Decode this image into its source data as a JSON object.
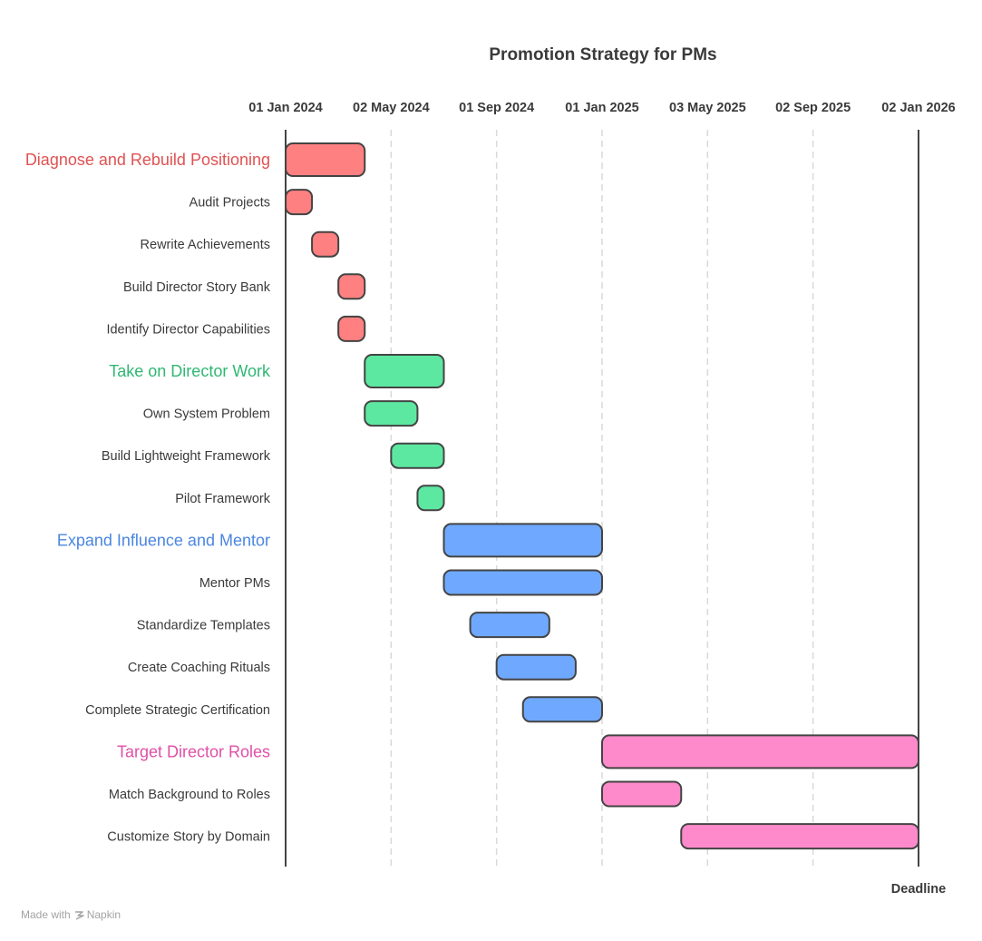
{
  "chart_data": {
    "type": "gantt",
    "title": "Promotion Strategy for PMs",
    "axis_ticks": [
      "01 Jan 2024",
      "02 May 2024",
      "01 Sep 2024",
      "01 Jan 2025",
      "03 May 2025",
      "02 Sep 2025",
      "02 Jan 2026"
    ],
    "tick_values": [
      0,
      4,
      8,
      12,
      16,
      20,
      24
    ],
    "x_unit": "months since 01 Jan 2024",
    "xlim": [
      0,
      24
    ],
    "deadline": {
      "label": "Deadline",
      "value": 24
    },
    "rows": [
      {
        "kind": "group",
        "label": "Diagnose and Rebuild Positioning",
        "start": 0,
        "end": 3,
        "color": "#e05252",
        "fill": "#ff8080"
      },
      {
        "kind": "task",
        "label": "Audit Projects",
        "start": 0,
        "end": 1,
        "fill": "#ff8080"
      },
      {
        "kind": "task",
        "label": "Rewrite Achievements",
        "start": 1,
        "end": 2,
        "fill": "#ff8080"
      },
      {
        "kind": "task",
        "label": "Build Director Story Bank",
        "start": 2,
        "end": 3,
        "fill": "#ff8080"
      },
      {
        "kind": "task",
        "label": "Identify Director Capabilities",
        "start": 2,
        "end": 3,
        "fill": "#ff8080"
      },
      {
        "kind": "group",
        "label": "Take on Director Work",
        "start": 3,
        "end": 6,
        "color": "#2eb872",
        "fill": "#5ce8a0"
      },
      {
        "kind": "task",
        "label": "Own System Problem",
        "start": 3,
        "end": 5,
        "fill": "#5ce8a0"
      },
      {
        "kind": "task",
        "label": "Build Lightweight Framework",
        "start": 4,
        "end": 6,
        "fill": "#5ce8a0"
      },
      {
        "kind": "task",
        "label": "Pilot Framework",
        "start": 5,
        "end": 6,
        "fill": "#5ce8a0"
      },
      {
        "kind": "group",
        "label": "Expand Influence and Mentor",
        "start": 6,
        "end": 12,
        "color": "#4a86e0",
        "fill": "#6fa8ff"
      },
      {
        "kind": "task",
        "label": "Mentor PMs",
        "start": 6,
        "end": 12,
        "fill": "#6fa8ff"
      },
      {
        "kind": "task",
        "label": "Standardize Templates",
        "start": 7,
        "end": 10,
        "fill": "#6fa8ff"
      },
      {
        "kind": "task",
        "label": "Create Coaching Rituals",
        "start": 8,
        "end": 11,
        "fill": "#6fa8ff"
      },
      {
        "kind": "task",
        "label": "Complete Strategic Certification",
        "start": 9,
        "end": 12,
        "fill": "#6fa8ff"
      },
      {
        "kind": "group",
        "label": "Target Director Roles",
        "start": 12,
        "end": 24,
        "color": "#e04fa8",
        "fill": "#ff8acb"
      },
      {
        "kind": "task",
        "label": "Match Background to Roles",
        "start": 12,
        "end": 15,
        "fill": "#ff8acb"
      },
      {
        "kind": "task",
        "label": "Customize Story by Domain",
        "start": 15,
        "end": 24,
        "fill": "#ff8acb"
      }
    ]
  },
  "footer": {
    "made_with": "Made with",
    "brand": "Napkin"
  }
}
